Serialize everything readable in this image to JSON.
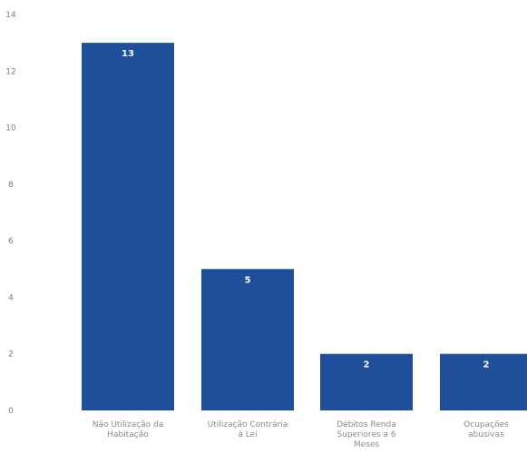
{
  "chart_data": {
    "type": "bar",
    "title": "",
    "xlabel": "",
    "ylabel": "",
    "categories": [
      [
        "Não Utilização da",
        "Habitação"
      ],
      [
        "Utilização Contrária",
        "à Lei"
      ],
      [
        "Débitos Renda",
        "Superiores a 6",
        "Meses"
      ],
      [
        "Ocupações",
        "abusivas"
      ]
    ],
    "values": [
      13,
      5,
      2,
      2
    ],
    "ylim": [
      0,
      14
    ],
    "yticks": [
      0,
      2,
      4,
      6,
      8,
      10,
      12,
      14
    ],
    "grid": false,
    "legend": "none",
    "colors": {
      "bar": "#1f4e9a",
      "data_label": "#ffffff",
      "tick_label": "#7a7a7a"
    }
  }
}
